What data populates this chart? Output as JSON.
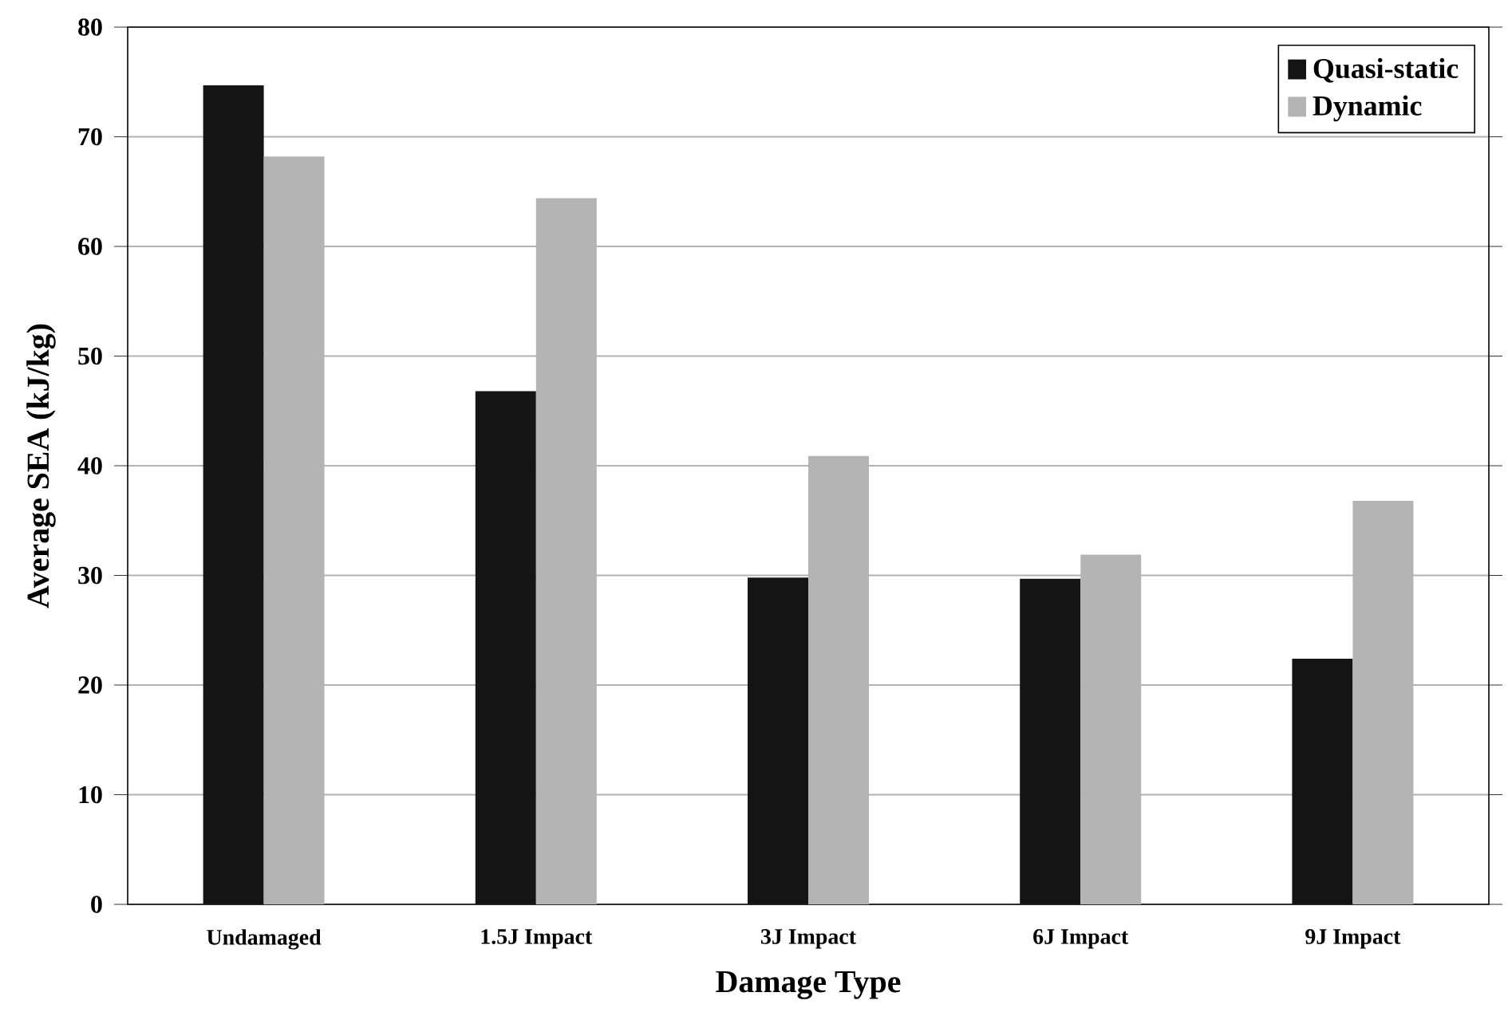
{
  "chart_data": {
    "type": "bar",
    "xlabel": "Damage Type",
    "ylabel": "Average SEA (kJ/kg)",
    "categories": [
      "Undamaged",
      "1.5J Impact",
      "3J Impact",
      "6J Impact",
      "9J Impact"
    ],
    "series": [
      {
        "name": "Quasi-static",
        "color": "#141414",
        "values": [
          74.7,
          46.8,
          29.8,
          29.7,
          22.4
        ]
      },
      {
        "name": "Dynamic",
        "color": "#b4b4b4",
        "values": [
          68.2,
          64.4,
          40.9,
          31.9,
          36.8
        ]
      }
    ],
    "ylim": [
      0,
      80
    ],
    "yticks": [
      0,
      10,
      20,
      30,
      40,
      50,
      60,
      70,
      80
    ],
    "grid": "y",
    "legend": "top right"
  }
}
